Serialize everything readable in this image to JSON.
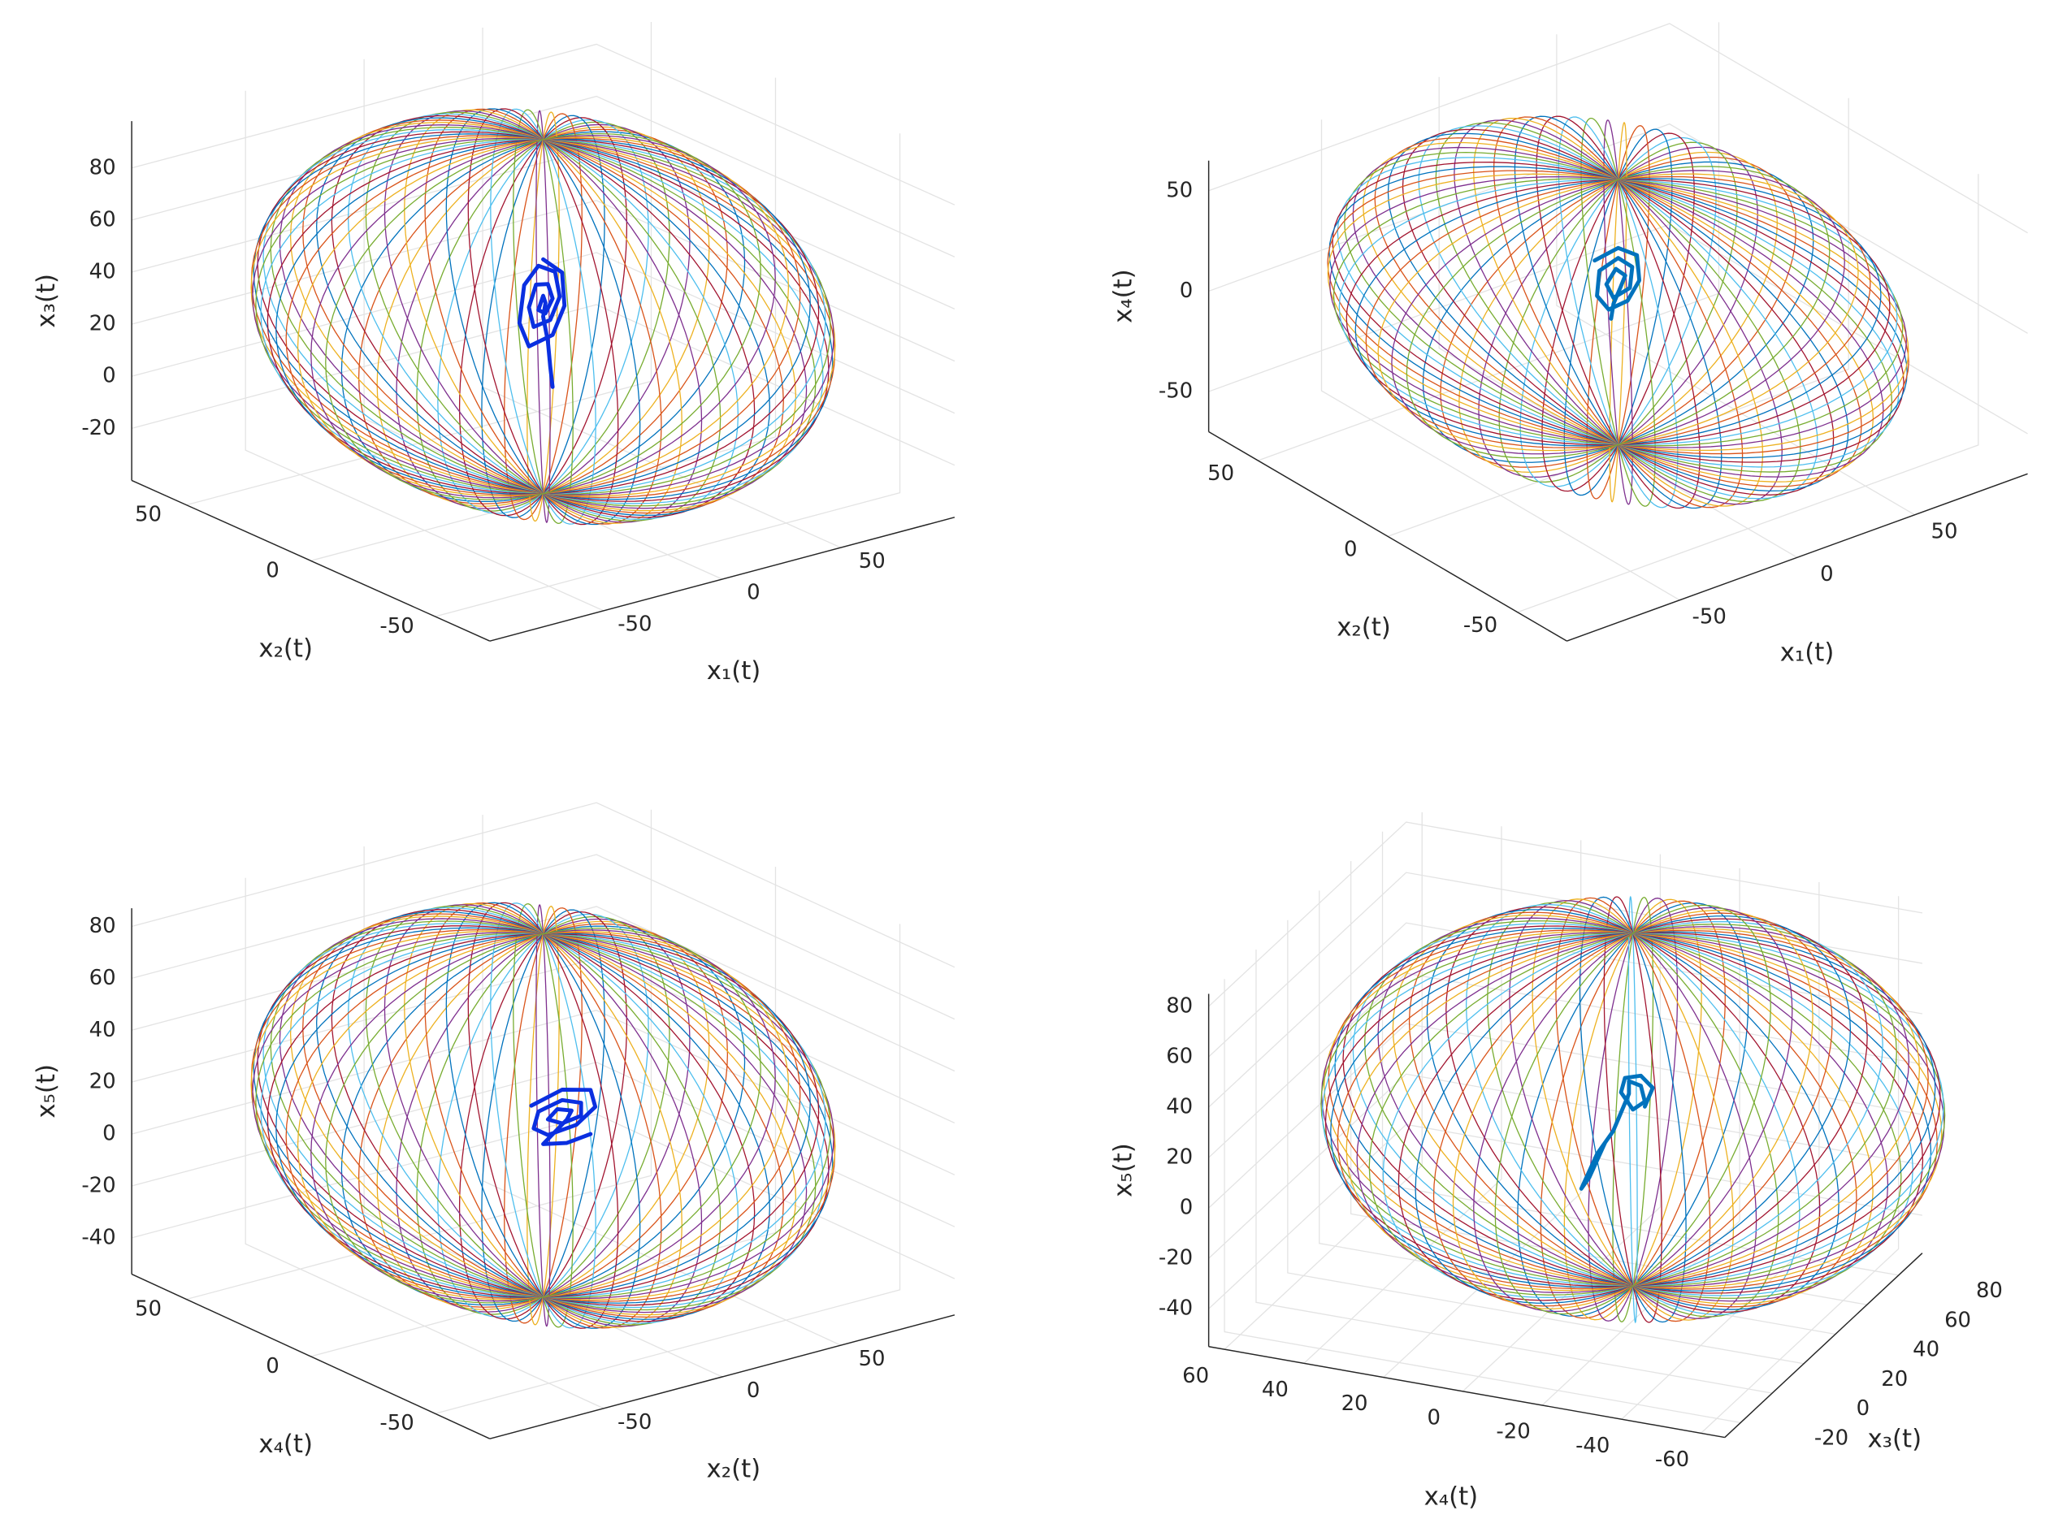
{
  "chart_data": [
    {
      "type": "3d-line",
      "xlabel": "x₁(t)",
      "ylabel": "x₂(t)",
      "zlabel": "x₃(t)",
      "xlim": [
        -98,
        98
      ],
      "ylim": [
        -72,
        72
      ],
      "zlim": [
        -40,
        98
      ],
      "xticks": [
        -50,
        0,
        50
      ],
      "yticks": [
        -50,
        0,
        50
      ],
      "zticks": [
        -20,
        0,
        20,
        40,
        60,
        80
      ],
      "grid": true,
      "surface": {
        "center": [
          0,
          0,
          30
        ],
        "radii": [
          85,
          85,
          68
        ],
        "colors": [
          "#0072bd",
          "#d95319",
          "#edb120",
          "#7e2f8e",
          "#77ac30",
          "#4dbeee",
          "#a2142f"
        ]
      },
      "trajectory": {
        "color": "#0a2fe0",
        "x": [
          0,
          8,
          9,
          4,
          -6,
          -10,
          -8,
          -2,
          5,
          7,
          3,
          -4,
          -6,
          -3,
          2,
          4,
          1,
          -2,
          0,
          1,
          0,
          2,
          3,
          4
        ],
        "y": [
          0,
          0,
          0,
          0,
          0,
          0,
          0,
          0,
          0,
          0,
          0,
          0,
          0,
          0,
          0,
          0,
          0,
          0,
          0,
          0,
          0,
          0,
          0,
          0
        ],
        "z": [
          52,
          45,
          32,
          22,
          20,
          30,
          44,
          50,
          46,
          36,
          28,
          27,
          35,
          43,
          42,
          36,
          31,
          33,
          38,
          35,
          30,
          20,
          10,
          2
        ]
      }
    },
    {
      "type": "3d-line",
      "xlabel": "x₁(t)",
      "ylabel": "x₂(t)",
      "zlabel": "x₄(t)",
      "xlim": [
        -98,
        98
      ],
      "ylim": [
        -69,
        69
      ],
      "zlim": [
        -70,
        65
      ],
      "xticks": [
        -50,
        0,
        50
      ],
      "yticks": [
        -50,
        0,
        50
      ],
      "zticks": [
        -50,
        0,
        50
      ],
      "grid": true,
      "surface": {
        "center": [
          0,
          0,
          0
        ],
        "radii": [
          83,
          83,
          66
        ],
        "colors": [
          "#0072bd",
          "#d95319",
          "#edb120",
          "#7e2f8e",
          "#77ac30",
          "#4dbeee",
          "#a2142f"
        ]
      },
      "trajectory": {
        "color": "#0072bd",
        "x": [
          -10,
          0,
          8,
          9,
          4,
          -4,
          -9,
          -8,
          0,
          6,
          5,
          -2,
          -5,
          -1,
          3,
          1,
          -2,
          -3
        ],
        "y": [
          0,
          0,
          0,
          0,
          0,
          0,
          0,
          0,
          0,
          0,
          0,
          0,
          0,
          0,
          0,
          0,
          0,
          0
        ],
        "z": [
          30,
          32,
          25,
          12,
          4,
          3,
          12,
          24,
          27,
          20,
          10,
          8,
          16,
          22,
          17,
          12,
          5,
          -2
        ]
      }
    },
    {
      "type": "3d-line",
      "xlabel": "x₂(t)",
      "ylabel": "x₄(t)",
      "zlabel": "x₅(t)",
      "xlim": [
        -98,
        98
      ],
      "ylim": [
        -72,
        72
      ],
      "zlim": [
        -54,
        87
      ],
      "xticks": [
        -50,
        0,
        50
      ],
      "yticks": [
        -50,
        0,
        50
      ],
      "zticks": [
        -40,
        -20,
        0,
        20,
        40,
        60,
        80
      ],
      "grid": true,
      "surface": {
        "center": [
          0,
          0,
          15
        ],
        "radii": [
          85,
          85,
          70
        ],
        "colors": [
          "#0072bd",
          "#d95319",
          "#edb120",
          "#7e2f8e",
          "#77ac30",
          "#4dbeee",
          "#a2142f"
        ]
      },
      "trajectory": {
        "color": "#0a2fe0",
        "x": [
          -5,
          8,
          20,
          22,
          14,
          2,
          -4,
          -2,
          8,
          16,
          16,
          8,
          2,
          6,
          12,
          10,
          0,
          10,
          20
        ],
        "y": [
          0,
          0,
          0,
          0,
          0,
          0,
          0,
          0,
          0,
          0,
          0,
          0,
          0,
          0,
          0,
          0,
          0,
          0,
          0
        ],
        "z": [
          20,
          23,
          20,
          13,
          8,
          7,
          11,
          17,
          19,
          16,
          11,
          10,
          13,
          16,
          14,
          11,
          4,
          2,
          3
        ]
      }
    },
    {
      "type": "3d-line",
      "xlabel": "x₃(t)",
      "ylabel": "x₄(t)",
      "zlabel": "x₅(t)",
      "xlim": [
        -30,
        95
      ],
      "ylim": [
        -66,
        64
      ],
      "zlim": [
        -55,
        85
      ],
      "xticks": [
        -20,
        0,
        20,
        40,
        60,
        80
      ],
      "yticks": [
        -60,
        -40,
        -20,
        0,
        20,
        40,
        60
      ],
      "zticks": [
        -40,
        -20,
        0,
        20,
        40,
        60,
        80
      ],
      "grid": true,
      "surface": {
        "center": [
          40,
          -15,
          20
        ],
        "radii": [
          73,
          73,
          70
        ],
        "colors": [
          "#0072bd",
          "#d95319",
          "#edb120",
          "#7e2f8e",
          "#77ac30",
          "#4dbeee",
          "#a2142f"
        ]
      },
      "trajectory": {
        "color": "#0072bd",
        "x": [
          40,
          40,
          40,
          40,
          40,
          40,
          40,
          40,
          40,
          40,
          40,
          40,
          40,
          40,
          40
        ],
        "y": [
          -18,
          -20,
          -17,
          -13,
          -12,
          -15,
          -18,
          -17,
          -14,
          -14,
          -10,
          -6,
          -2,
          -4,
          -8
        ],
        "z": [
          22,
          30,
          34,
          32,
          26,
          20,
          24,
          30,
          31,
          26,
          10,
          0,
          -15,
          -10,
          5
        ]
      }
    }
  ]
}
